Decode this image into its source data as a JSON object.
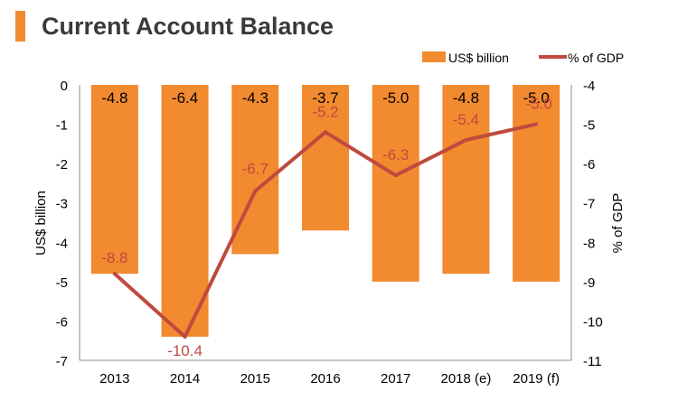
{
  "title": "Current Account Balance",
  "colors": {
    "title_accent": "#f28a2f",
    "bar": "#f28a2f",
    "line": "#bf4a3e",
    "axis": "#8c8c8c"
  },
  "chart_data": {
    "type": "bar",
    "categories": [
      "2013",
      "2014",
      "2015",
      "2016",
      "2017",
      "2018 (e)",
      "2019 (f)"
    ],
    "series": [
      {
        "name": "US$ billion",
        "type": "bar",
        "axis": "left",
        "values": [
          -4.8,
          -6.4,
          -4.3,
          -3.7,
          -5.0,
          -4.8,
          -5.0
        ],
        "labels": [
          "-4.8",
          "-6.4",
          "-4.3",
          "-3.7",
          "-5.0",
          "-4.8",
          "-5.0"
        ]
      },
      {
        "name": "% of GDP",
        "type": "line",
        "axis": "right",
        "values": [
          -8.8,
          -10.4,
          -6.7,
          -5.2,
          -6.3,
          -5.4,
          -5.0
        ],
        "labels": [
          "-8.8",
          "-10.4",
          "-6.7",
          "-5.2",
          "-6.3",
          "-5.4",
          "-5.0"
        ]
      }
    ],
    "ylabel": "US$ billion",
    "ylim": [
      -7,
      0
    ],
    "yticks": [
      "0",
      "-1",
      "-2",
      "-3",
      "-4",
      "-5",
      "-6",
      "-7"
    ],
    "y2label": "% of GDP",
    "y2lim": [
      -11,
      -4
    ],
    "y2ticks": [
      "-4",
      "-5",
      "-6",
      "-7",
      "-8",
      "-9",
      "-10",
      "-11"
    ],
    "legend_position": "top-right",
    "grid": false
  }
}
